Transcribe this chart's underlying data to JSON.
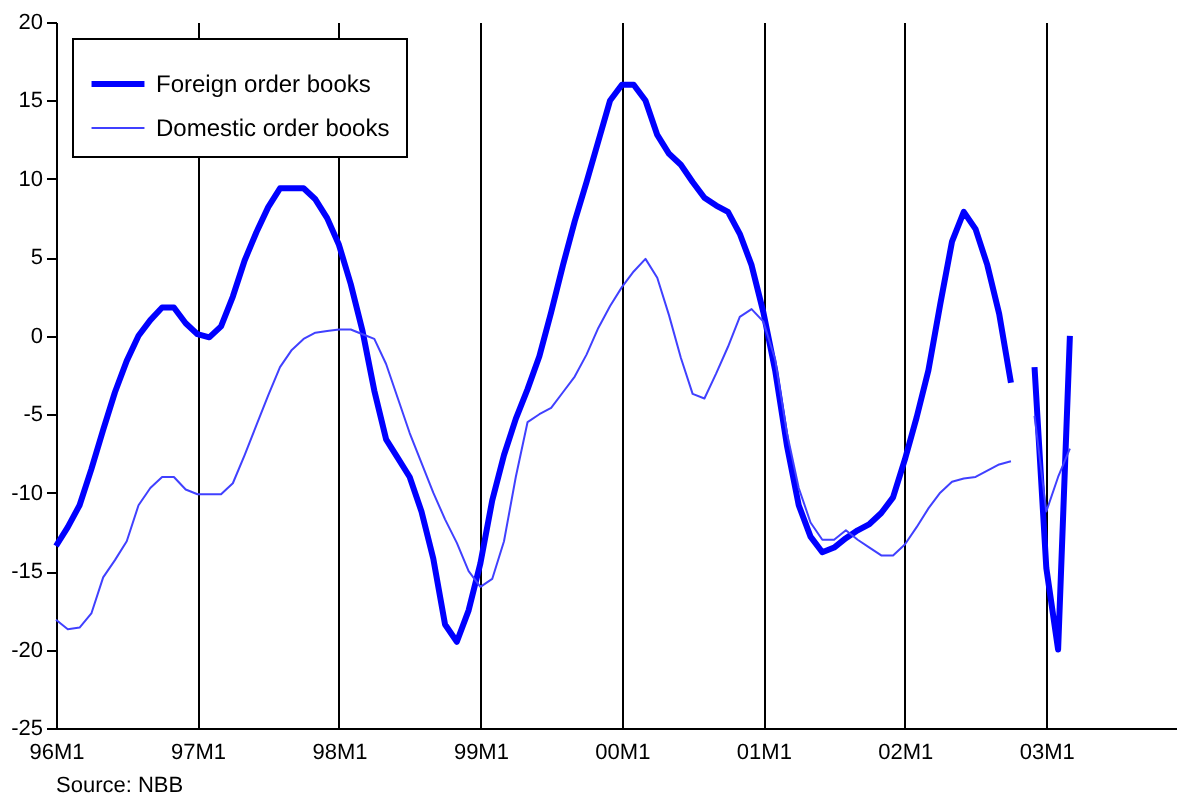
{
  "chart_data": {
    "type": "line",
    "categories": [
      "96M1",
      null,
      null,
      null,
      null,
      null,
      null,
      null,
      null,
      null,
      null,
      null,
      "97M1",
      null,
      null,
      null,
      null,
      null,
      null,
      null,
      null,
      null,
      null,
      null,
      "98M1",
      null,
      null,
      null,
      null,
      null,
      null,
      null,
      null,
      null,
      null,
      null,
      "99M1",
      null,
      null,
      null,
      null,
      null,
      null,
      null,
      null,
      null,
      null,
      null,
      "00M1",
      null,
      null,
      null,
      null,
      null,
      null,
      null,
      null,
      null,
      null,
      null,
      "01M1",
      null,
      null,
      null,
      null,
      null,
      null,
      null,
      null,
      null,
      null,
      null,
      "02M1",
      null,
      null,
      null,
      null,
      null,
      null,
      null,
      null,
      null,
      null,
      null,
      "03M1",
      null,
      null,
      null,
      null,
      null,
      null,
      null,
      null,
      null,
      null,
      null
    ],
    "series": [
      {
        "name": "Foreign order books",
        "color": "#0000ff",
        "values": [
          -13.4,
          -12.2,
          -10.8,
          -8.5,
          -6,
          -3.6,
          -1.6,
          0,
          1,
          1.8,
          1.8,
          0.8,
          0.1,
          -0.1,
          0.6,
          2.5,
          4.8,
          6.6,
          8.2,
          9.4,
          9.4,
          9.4,
          8.7,
          7.5,
          5.8,
          3.3,
          0.3,
          -3.5,
          -6.6,
          -7.8,
          -9,
          -11.2,
          -14.2,
          -18.4,
          -19.5,
          -17.5,
          -14.5,
          -10.5,
          -7.6,
          -5.3,
          -3.4,
          -1.3,
          1.5,
          4.5,
          7.3,
          9.8,
          12.4,
          15,
          16,
          16,
          15,
          12.8,
          11.6,
          10.9,
          9.8,
          8.8,
          8.3,
          7.9,
          6.5,
          4.5,
          1.5,
          -2.2,
          -7,
          -10.8,
          -12.8,
          -13.8,
          -13.5,
          -12.9,
          -12.4,
          -12,
          -11.3,
          -10.3,
          -7.9,
          -5.2,
          -2.2,
          2,
          6,
          7.9,
          6.8,
          4.5,
          1.4,
          -3,
          null,
          -2,
          -14.8,
          -20,
          0,
          null,
          null,
          null,
          null,
          null,
          null,
          null,
          null,
          null
        ]
      },
      {
        "name": "Domestic order books",
        "color": "#4040ff",
        "values": [
          -18.1,
          -18.7,
          -18.6,
          -17.7,
          -15.4,
          -14.3,
          -13.1,
          -10.8,
          -9.7,
          -9,
          -9,
          -9.8,
          -10.1,
          -10.1,
          -10.1,
          -9.4,
          -7.6,
          -5.7,
          -3.8,
          -2,
          -0.9,
          -0.2,
          0.2,
          0.3,
          0.4,
          0.4,
          0.1,
          -0.2,
          -1.8,
          -4,
          -6.2,
          -8.1,
          -10,
          -11.7,
          -13.2,
          -15,
          -16,
          -15.5,
          -13.1,
          -9,
          -5.5,
          -5,
          -4.6,
          -3.6,
          -2.6,
          -1.2,
          0.5,
          1.9,
          3.1,
          4.1,
          4.9,
          3.7,
          1.3,
          -1.4,
          -3.7,
          -4,
          -2.4,
          -0.7,
          1.2,
          1.7,
          0.9,
          -1.5,
          -6.2,
          -9.7,
          -11.9,
          -13,
          -13,
          -12.4,
          -13,
          -13.5,
          -14,
          -14,
          -13.3,
          -12.2,
          -11,
          -10,
          -9.3,
          -9.1,
          -9,
          -8.6,
          -8.2,
          -8,
          null,
          -5.1,
          -11.2,
          -9,
          -7.2,
          null,
          null,
          null,
          null,
          null,
          null,
          null,
          null,
          null
        ]
      }
    ],
    "ylim": [
      -25,
      20
    ],
    "yticks": [
      -25,
      -20,
      -15,
      -10,
      -5,
      0,
      5,
      10,
      15,
      20
    ],
    "grid": "x",
    "legend": "top left",
    "line_style": "solid",
    "annotations": [
      "Source: NBB"
    ]
  }
}
